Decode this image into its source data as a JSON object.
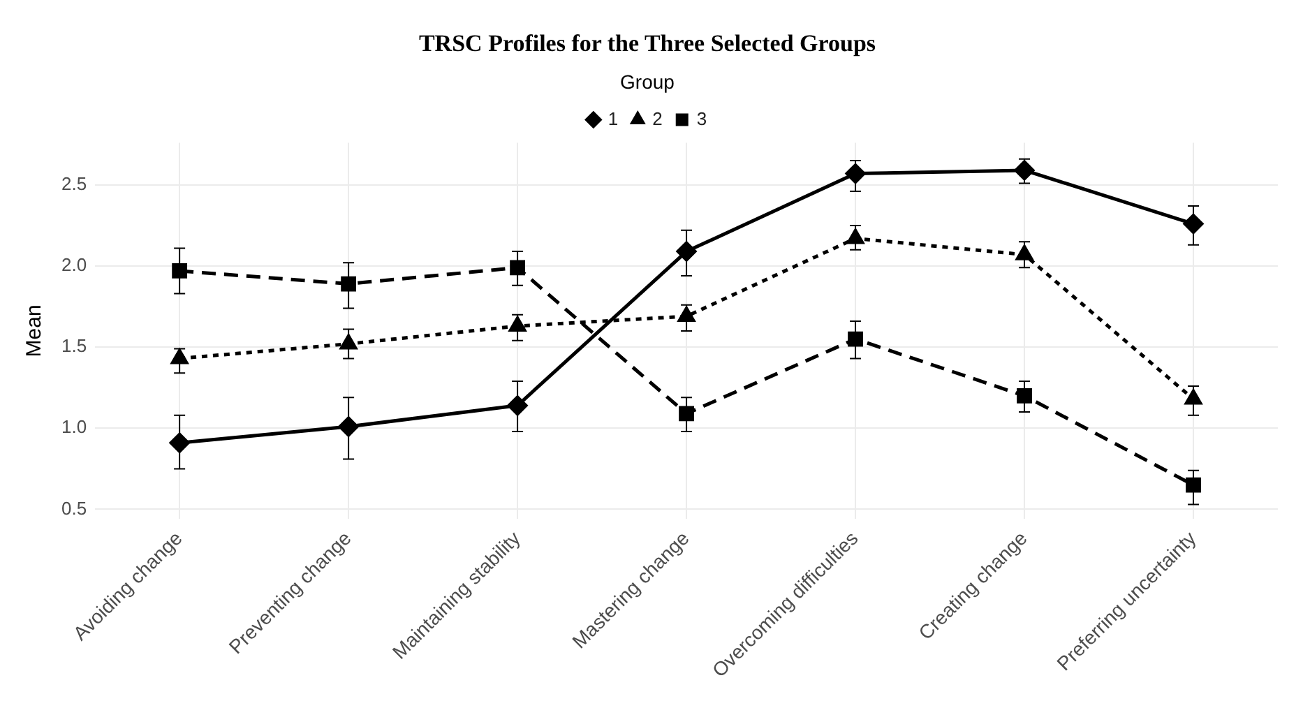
{
  "chart_data": {
    "type": "line",
    "title": "TRSC Profiles for the Three Selected Groups",
    "ylabel": "Mean",
    "legend_title": "Group",
    "legend": "top",
    "grid": true,
    "categories": [
      "Avoiding change",
      "Preventing change",
      "Maintaining stability",
      "Mastering change",
      "Overcoming difficulties",
      "Creating change",
      "Preferring uncertainty"
    ],
    "ylim": [
      0.44,
      2.76
    ],
    "yticks": [
      0.5,
      {
        "value": 1,
        "label": "1.0"
      },
      1.5,
      {
        "value": 2,
        "label": "2.0"
      },
      2.5
    ],
    "series": [
      {
        "name": "1",
        "color": "#000000",
        "marker": "diamond",
        "line_style": "solid",
        "values": [
          0.91,
          1.01,
          1.14,
          2.09,
          2.57,
          2.59,
          2.26
        ],
        "errors": [
          [
            0.75,
            1.08
          ],
          [
            0.81,
            1.19
          ],
          [
            0.98,
            1.29
          ],
          [
            1.94,
            2.22
          ],
          [
            2.46,
            2.65
          ],
          [
            2.51,
            2.66
          ],
          [
            2.13,
            2.37
          ]
        ]
      },
      {
        "name": "2",
        "color": "#000000",
        "marker": "triangle",
        "line_style": "dotted",
        "values": [
          1.43,
          1.52,
          1.63,
          1.69,
          2.17,
          2.07,
          1.18
        ],
        "errors": [
          [
            1.34,
            1.49
          ],
          [
            1.43,
            1.61
          ],
          [
            1.54,
            1.7
          ],
          [
            1.6,
            1.76
          ],
          [
            2.1,
            2.25
          ],
          [
            1.99,
            2.15
          ],
          [
            1.08,
            1.26
          ]
        ]
      },
      {
        "name": "3",
        "color": "#000000",
        "marker": "square",
        "line_style": "dashed",
        "values": [
          1.97,
          1.89,
          1.99,
          1.09,
          1.55,
          1.2,
          0.65
        ],
        "errors": [
          [
            1.83,
            2.11
          ],
          [
            1.74,
            2.02
          ],
          [
            1.88,
            2.09
          ],
          [
            0.98,
            1.19
          ],
          [
            1.43,
            1.66
          ],
          [
            1.1,
            1.29
          ],
          [
            0.53,
            0.74
          ]
        ]
      }
    ]
  }
}
